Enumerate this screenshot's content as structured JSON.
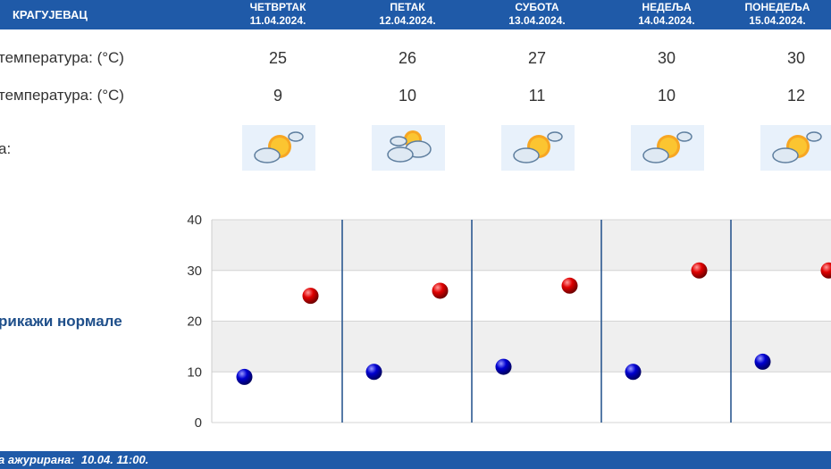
{
  "header": {
    "city": "КРАГУЈЕВАЦ"
  },
  "days": [
    {
      "name": "ЧЕТВРТАК",
      "date": "11.04.2024.",
      "max": "25",
      "min": "9",
      "icon": "sun-cloud-icon"
    },
    {
      "name": "ПЕТАК",
      "date": "12.04.2024.",
      "max": "26",
      "min": "10",
      "icon": "cloud-sun-icon"
    },
    {
      "name": "СУБОТА",
      "date": "13.04.2024.",
      "max": "27",
      "min": "11",
      "icon": "sun-cloud-icon"
    },
    {
      "name": "НЕДЕЉА",
      "date": "14.04.2024.",
      "max": "30",
      "min": "10",
      "icon": "sun-cloud-icon"
    },
    {
      "name": "ПОНЕДЕЉА",
      "date": "15.04.2024.",
      "max": "30",
      "min": "12",
      "icon": "sun-cloud-icon"
    }
  ],
  "rows": {
    "max_label": "температура: (°C)",
    "min_label": "температура: (°C)",
    "weather_label": "а:"
  },
  "normals_link": "рикажи нормале",
  "footer": {
    "updated": "а ажурирана:  10.04. 11:00."
  },
  "colors": {
    "header_bg": "#1f5aa8",
    "max_marker": "#cc0000",
    "min_marker": "#0000bb",
    "divider": "#1f4f8a"
  },
  "chart_data": {
    "type": "scatter",
    "categories": [
      "11.04.2024.",
      "12.04.2024.",
      "13.04.2024.",
      "14.04.2024.",
      "15.04.2024."
    ],
    "series": [
      {
        "values": [
          25,
          26,
          27,
          30,
          30
        ],
        "color": "#cc0000"
      },
      {
        "values": [
          9,
          10,
          11,
          10,
          12
        ],
        "color": "#0000bb"
      }
    ],
    "ylim": [
      0,
      40
    ],
    "yticks": [
      "0",
      "10",
      "20",
      "30",
      "40"
    ],
    "grid": true,
    "alternating_bands": true
  }
}
